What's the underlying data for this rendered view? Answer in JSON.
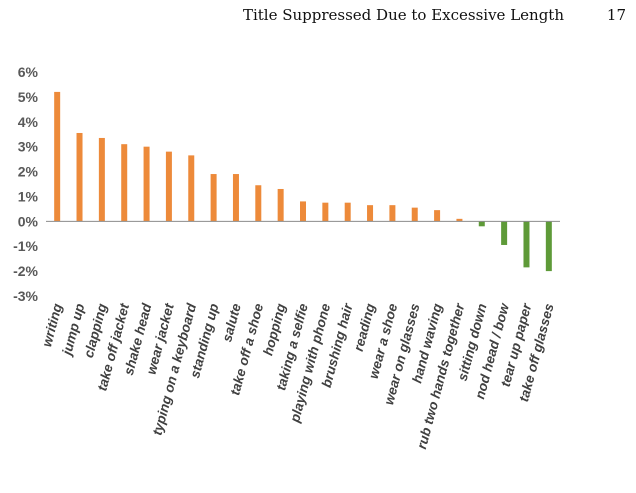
{
  "header": {
    "running_title": "Title Suppressed Due to Excessive Length",
    "page_number": "17"
  },
  "colors": {
    "positive": "#ED8A3A",
    "negative": "#5E9A38",
    "axis": "#8C8C8C",
    "text": "#404040"
  },
  "chart_data": {
    "type": "bar",
    "title": "",
    "xlabel": "",
    "ylabel": "",
    "ylim": [
      -3,
      6
    ],
    "yticks": [
      -3,
      -2,
      -1,
      0,
      1,
      2,
      3,
      4,
      5,
      6
    ],
    "ytick_labels": [
      "-3%",
      "-2%",
      "-1%",
      "0%",
      "1%",
      "2%",
      "3%",
      "4%",
      "5%",
      "6%"
    ],
    "grid": false,
    "legend": "none",
    "categories": [
      "writing",
      "jump up",
      "clapping",
      "take off jacket",
      "shake head",
      "wear jacket",
      "typing on a keyboard",
      "standing up",
      "salute",
      "take off a shoe",
      "hopping",
      "taking a selfie",
      "playing with phone",
      "brushing hair",
      "reading",
      "wear a shoe",
      "wear on glasses",
      "hand waving",
      "rub two hands together",
      "sitting down",
      "nod head / bow",
      "tear up paper",
      "take off glasses"
    ],
    "values": [
      5.2,
      3.55,
      3.35,
      3.1,
      3.0,
      2.8,
      2.65,
      1.9,
      1.9,
      1.45,
      1.3,
      0.8,
      0.75,
      0.75,
      0.65,
      0.65,
      0.55,
      0.45,
      0.1,
      -0.2,
      -0.95,
      -1.85,
      -2.0
    ]
  }
}
